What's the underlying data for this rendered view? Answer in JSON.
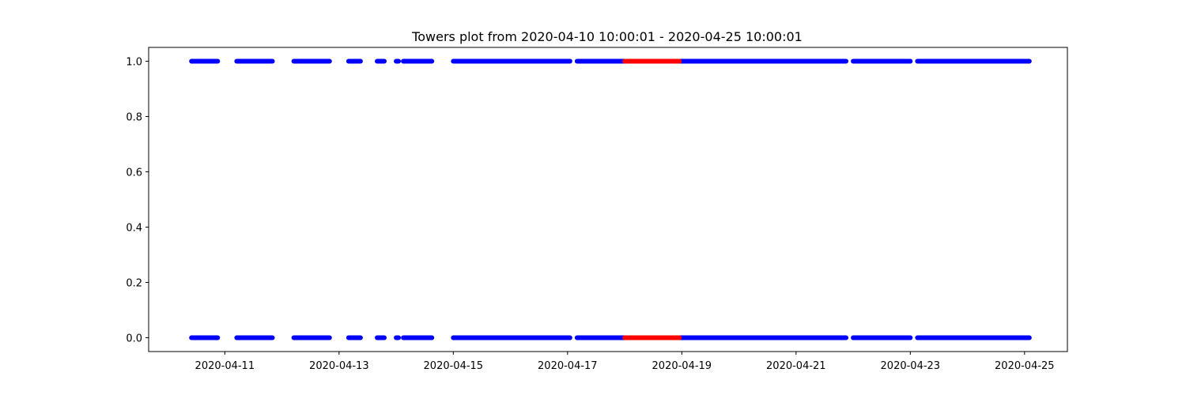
{
  "chart_data": {
    "type": "scatter",
    "title": "Towers plot from 2020-04-10 10:00:01 - 2020-04-25 10:00:01",
    "xlabel": "",
    "ylabel": "",
    "xlim": [
      "2020-04-09 16:00:00",
      "2020-04-25 18:00:00"
    ],
    "ylim": [
      -0.05,
      1.05
    ],
    "x_ticks": [
      "2020-04-11",
      "2020-04-13",
      "2020-04-15",
      "2020-04-17",
      "2020-04-19",
      "2020-04-21",
      "2020-04-23",
      "2020-04-25"
    ],
    "y_ticks": [
      "0.0",
      "0.2",
      "0.4",
      "0.6",
      "0.8",
      "1.0"
    ],
    "grid": false,
    "series": [
      {
        "color": "#0000ff",
        "y_levels": [
          0,
          1
        ],
        "segments": [
          [
            "2020-04-10 10:00:00",
            "2020-04-10 21:00:00"
          ],
          [
            "2020-04-11 05:00:00",
            "2020-04-11 20:00:00"
          ],
          [
            "2020-04-12 05:00:00",
            "2020-04-12 20:00:00"
          ],
          [
            "2020-04-13 04:00:00",
            "2020-04-13 09:00:00"
          ],
          [
            "2020-04-13 16:00:00",
            "2020-04-13 19:00:00"
          ],
          [
            "2020-04-14 00:00:00",
            "2020-04-14 01:00:00"
          ],
          [
            "2020-04-14 03:00:00",
            "2020-04-14 15:00:00"
          ],
          [
            "2020-04-15 00:00:00",
            "2020-04-16 02:00:00"
          ],
          [
            "2020-04-16 02:00:00",
            "2020-04-17 01:00:00"
          ],
          [
            "2020-04-17 04:00:00",
            "2020-04-18 00:00:00"
          ],
          [
            "2020-04-18 23:00:00",
            "2020-04-21 21:00:00"
          ],
          [
            "2020-04-22 00:00:00",
            "2020-04-23 00:00:00"
          ],
          [
            "2020-04-23 03:00:00",
            "2020-04-25 02:00:00"
          ]
        ]
      },
      {
        "color": "#ff0000",
        "y_levels": [
          0,
          1
        ],
        "segments": [
          [
            "2020-04-18 00:00:00",
            "2020-04-18 23:00:00"
          ]
        ]
      }
    ]
  }
}
